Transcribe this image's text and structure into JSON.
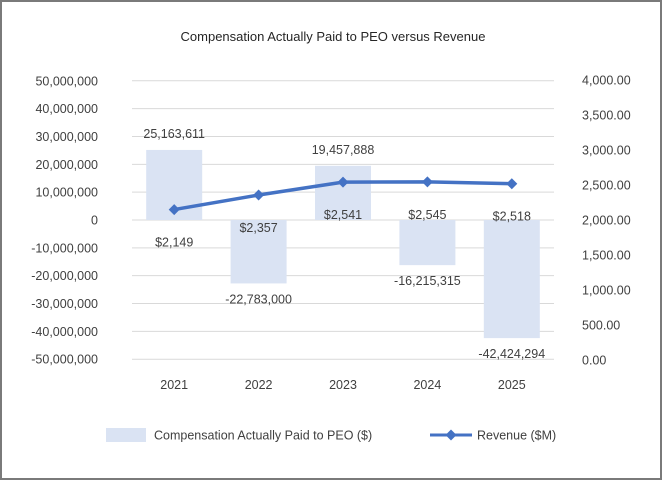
{
  "chart_data": {
    "type": "bar",
    "title": "Compensation Actually Paid to PEO versus Revenue",
    "categories": [
      "2021",
      "2022",
      "2023",
      "2024",
      "2025"
    ],
    "series": [
      {
        "name": "Compensation Actually Paid to PEO ($)",
        "type": "bar",
        "axis": "left",
        "color": "#dae3f3",
        "values": [
          25163611,
          -22783000,
          19457888,
          -16215315,
          -42424294
        ],
        "labels": [
          "25,163,611",
          "-22,783,000",
          "19,457,888",
          "-16,215,315",
          "-42,424,294"
        ]
      },
      {
        "name": "Revenue ($M)",
        "type": "line",
        "axis": "right",
        "color": "#4472c4",
        "marker": "diamond",
        "values": [
          2149,
          2357,
          2541,
          2545,
          2518
        ],
        "labels": [
          "$2,149",
          "$2,357",
          "$2,541",
          "$2,545",
          "$2,518"
        ]
      }
    ],
    "y_left": {
      "ylim": [
        -50000000,
        50000000
      ],
      "ticks": [
        50000000,
        40000000,
        30000000,
        20000000,
        10000000,
        0,
        -10000000,
        -20000000,
        -30000000,
        -40000000,
        -50000000
      ],
      "tick_labels": [
        "50,000,000",
        "40,000,000",
        "30,000,000",
        "20,000,000",
        "10,000,000",
        "0",
        "-10,000,000",
        "-20,000,000",
        "-30,000,000",
        "-40,000,000",
        "-50,000,000"
      ]
    },
    "y_right": {
      "ylim": [
        0,
        4000
      ],
      "ticks": [
        4000,
        3500,
        3000,
        2500,
        2000,
        1500,
        1000,
        500,
        0
      ],
      "tick_labels": [
        "4,000.00",
        "3,500.00",
        "3,000.00",
        "2,500.00",
        "2,000.00",
        "1,500.00",
        "1,000.00",
        "500.00",
        "0.00"
      ]
    },
    "grid": true,
    "legend_position": "bottom"
  }
}
